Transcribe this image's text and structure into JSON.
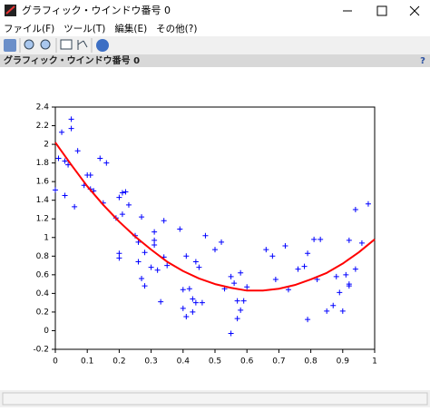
{
  "window": {
    "title": "グラフィック・ウインドウ番号 0",
    "menu": [
      "ファイル(F)",
      "ツール(T)",
      "編集(E)",
      "その他(?)"
    ],
    "panel_title": "グラフィック・ウインドウ番号 0",
    "help": "?"
  },
  "chart_data": {
    "type": "scatter",
    "xlim": [
      0,
      1
    ],
    "ylim": [
      -0.2,
      2.4
    ],
    "xticks": [
      0,
      0.1,
      0.2,
      0.3,
      0.4,
      0.5,
      0.6,
      0.7,
      0.8,
      0.9,
      1
    ],
    "yticks": [
      -0.2,
      0,
      0.2,
      0.4,
      0.6,
      0.8,
      1,
      1.2,
      1.4,
      1.6,
      1.8,
      2,
      2.2,
      2.4
    ],
    "series": [
      {
        "mode": "markers",
        "color": "#0000ff",
        "x": [
          0.0,
          0.01,
          0.02,
          0.03,
          0.03,
          0.04,
          0.05,
          0.05,
          0.06,
          0.07,
          0.09,
          0.1,
          0.11,
          0.11,
          0.12,
          0.14,
          0.15,
          0.16,
          0.19,
          0.2,
          0.2,
          0.2,
          0.21,
          0.21,
          0.22,
          0.23,
          0.25,
          0.26,
          0.26,
          0.27,
          0.27,
          0.28,
          0.28,
          0.3,
          0.31,
          0.31,
          0.31,
          0.32,
          0.33,
          0.34,
          0.34,
          0.35,
          0.39,
          0.4,
          0.4,
          0.41,
          0.41,
          0.42,
          0.43,
          0.43,
          0.44,
          0.44,
          0.45,
          0.46,
          0.47,
          0.5,
          0.52,
          0.53,
          0.55,
          0.55,
          0.56,
          0.57,
          0.57,
          0.58,
          0.58,
          0.59,
          0.6,
          0.66,
          0.68,
          0.69,
          0.72,
          0.73,
          0.76,
          0.78,
          0.79,
          0.79,
          0.81,
          0.82,
          0.83,
          0.85,
          0.87,
          0.88,
          0.89,
          0.9,
          0.91,
          0.92,
          0.92,
          0.92,
          0.94,
          0.94,
          0.96,
          0.98
        ],
        "values": [
          1.51,
          1.85,
          2.13,
          1.82,
          1.45,
          1.78,
          2.27,
          2.17,
          1.33,
          1.93,
          1.56,
          1.67,
          1.67,
          1.52,
          1.5,
          1.85,
          1.37,
          1.8,
          1.21,
          1.43,
          0.83,
          0.78,
          1.48,
          1.25,
          1.49,
          1.35,
          1.02,
          0.95,
          0.74,
          0.56,
          1.22,
          0.84,
          0.48,
          0.68,
          0.97,
          1.06,
          0.92,
          0.65,
          0.31,
          0.79,
          1.18,
          0.7,
          1.09,
          0.44,
          0.24,
          0.15,
          0.8,
          0.45,
          0.2,
          0.34,
          0.3,
          0.74,
          0.68,
          0.3,
          1.02,
          0.87,
          0.95,
          0.45,
          -0.03,
          0.58,
          0.51,
          0.32,
          0.13,
          0.62,
          0.22,
          0.32,
          0.47,
          0.87,
          0.8,
          0.55,
          0.91,
          0.44,
          0.66,
          0.69,
          0.12,
          0.83,
          0.98,
          0.55,
          0.98,
          0.21,
          0.27,
          0.58,
          0.41,
          0.21,
          0.6,
          0.97,
          0.48,
          0.5,
          0.66,
          1.3,
          0.94,
          1.36
        ]
      },
      {
        "mode": "line",
        "color": "#ff0000",
        "x": [
          0,
          0.05,
          0.1,
          0.15,
          0.2,
          0.25,
          0.3,
          0.35,
          0.4,
          0.45,
          0.5,
          0.55,
          0.6,
          0.65,
          0.7,
          0.75,
          0.8,
          0.85,
          0.9,
          0.95,
          1
        ],
        "values": [
          2.02,
          1.78,
          1.55,
          1.35,
          1.17,
          1.01,
          0.87,
          0.74,
          0.64,
          0.56,
          0.5,
          0.46,
          0.43,
          0.43,
          0.45,
          0.49,
          0.55,
          0.62,
          0.72,
          0.84,
          0.98
        ]
      }
    ]
  }
}
